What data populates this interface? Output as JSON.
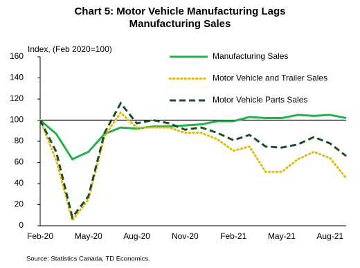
{
  "chart_data": {
    "type": "line",
    "title": [
      "Chart 5: Motor Vehicle Manufacturing Lags",
      "Manufacturing Sales"
    ],
    "y_label": "Index, (Feb 2020=100)",
    "source": "Source: Statistics Canada, TD Economics.",
    "categories": [
      "Feb-20",
      null,
      null,
      "May-20",
      null,
      null,
      "Aug-20",
      null,
      null,
      "Nov-20",
      null,
      null,
      "Feb-21",
      null,
      null,
      "May-21",
      null,
      null,
      "Aug-21",
      null
    ],
    "ylim": [
      0,
      160
    ],
    "yticks": [
      0,
      20,
      40,
      60,
      80,
      100,
      120,
      140,
      160
    ],
    "reference_line": 100,
    "series": [
      {
        "name": "Manufacturing Sales",
        "color": "#22b24c",
        "style": "solid",
        "values": [
          100,
          87,
          63,
          70,
          87,
          93,
          92,
          94,
          94,
          95,
          96,
          99,
          99,
          103,
          102,
          102,
          105,
          104,
          105,
          102
        ]
      },
      {
        "name": "Motor Vehicle and Trailer Sales",
        "color": "#e3b80f",
        "style": "dotted",
        "values": [
          100,
          62,
          5,
          25,
          85,
          107,
          93,
          93,
          93,
          88,
          88,
          82,
          71,
          75,
          51,
          51,
          63,
          70,
          64,
          45
        ]
      },
      {
        "name": "Motor Vehicle Parts Sales",
        "color": "#1e4d2b",
        "style": "dashed",
        "values": [
          100,
          70,
          8,
          28,
          88,
          116,
          97,
          100,
          97,
          91,
          93,
          88,
          81,
          86,
          75,
          74,
          77,
          84,
          78,
          66
        ]
      }
    ]
  }
}
